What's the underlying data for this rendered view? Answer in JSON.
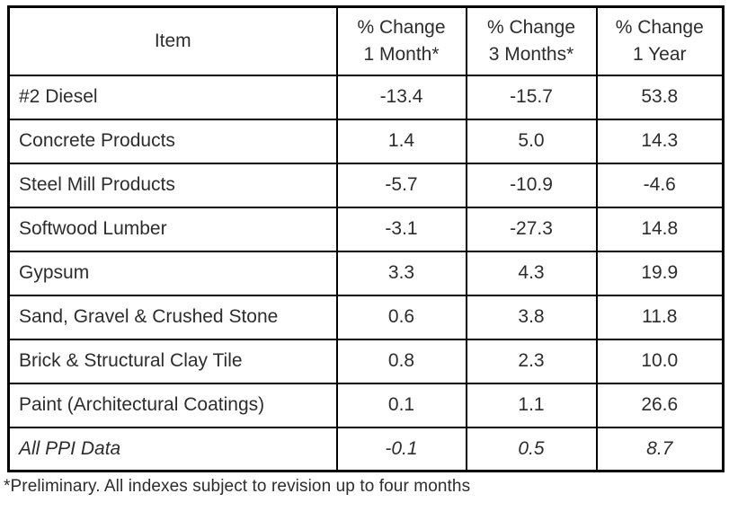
{
  "colors": {
    "border": "#000000",
    "text": "#2d2d2d",
    "background": "#ffffff"
  },
  "chart_data": {
    "type": "table",
    "columns": [
      "Item",
      "% Change\n1 Month*",
      "% Change\n3 Months*",
      "% Change\n1 Year"
    ],
    "rows": [
      {
        "item": "#2 Diesel",
        "m1": "-13.4",
        "m3": "-15.7",
        "y1": "53.8"
      },
      {
        "item": "Concrete Products",
        "m1": "1.4",
        "m3": "5.0",
        "y1": "14.3"
      },
      {
        "item": "Steel Mill Products",
        "m1": "-5.7",
        "m3": "-10.9",
        "y1": "-4.6"
      },
      {
        "item": "Softwood Lumber",
        "m1": "-3.1",
        "m3": "-27.3",
        "y1": "14.8"
      },
      {
        "item": "Gypsum",
        "m1": "3.3",
        "m3": "4.3",
        "y1": "19.9"
      },
      {
        "item": "Sand, Gravel & Crushed Stone",
        "m1": "0.6",
        "m3": "3.8",
        "y1": "11.8"
      },
      {
        "item": "Brick & Structural Clay Tile",
        "m1": "0.8",
        "m3": "2.3",
        "y1": "10.0"
      },
      {
        "item": "Paint (Architectural Coatings)",
        "m1": "0.1",
        "m3": "1.1",
        "y1": "26.6"
      },
      {
        "item": "All PPI Data",
        "m1": "-0.1",
        "m3": "0.5",
        "y1": "8.7"
      }
    ],
    "footnote": "*Preliminary. All indexes subject to revision up to four months"
  }
}
